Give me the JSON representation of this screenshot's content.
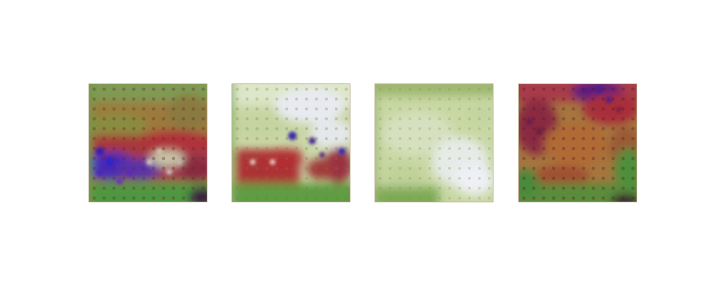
{
  "figure": {
    "description_tiles": 4
  },
  "tiles": [
    {
      "id": "sample-1",
      "palette": {
        "base": "#8a8a45",
        "top": "#7e9a50",
        "mid_red": "#b0343a",
        "blue": "#3a2bc0",
        "green": "#4e9a3c",
        "light": "#c9c9a4"
      }
    },
    {
      "id": "sample-2",
      "palette": {
        "base": "#c9d8a8",
        "top": "#dfe8cc",
        "mid_red": "#b02e30",
        "blue": "#3a2a9e",
        "green": "#5d9a40",
        "light": "#e9ebf0"
      }
    },
    {
      "id": "sample-3",
      "palette": {
        "base": "#c4d5a0",
        "top": "#9eb870",
        "light": "#e8ede4",
        "white": "#f0f2f6",
        "green": "#7caa52"
      }
    },
    {
      "id": "sample-4",
      "palette": {
        "base": "#a87a40",
        "red": "#b0303a",
        "purple": "#5a1e7a",
        "green": "#4f8f3a",
        "orange": "#b07038"
      }
    }
  ]
}
